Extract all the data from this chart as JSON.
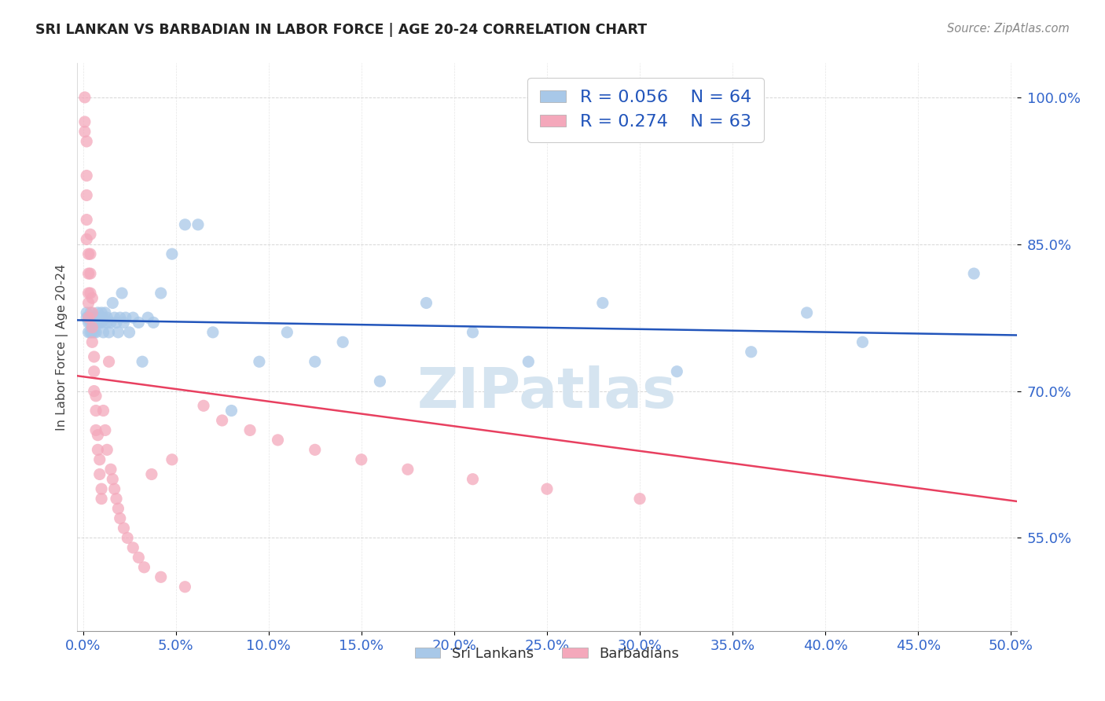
{
  "title": "SRI LANKAN VS BARBADIAN IN LABOR FORCE | AGE 20-24 CORRELATION CHART",
  "source": "Source: ZipAtlas.com",
  "ylabel": "In Labor Force | Age 20-24",
  "xlim": [
    -0.003,
    0.503
  ],
  "ylim": [
    0.455,
    1.035
  ],
  "ytick_vals": [
    0.55,
    0.7,
    0.85,
    1.0
  ],
  "ytick_labels": [
    "55.0%",
    "70.0%",
    "85.0%",
    "100.0%"
  ],
  "xtick_vals": [
    0.0,
    0.05,
    0.1,
    0.15,
    0.2,
    0.25,
    0.3,
    0.35,
    0.4,
    0.45,
    0.5
  ],
  "sri_lankan_color": "#a8c8e8",
  "barbadian_color": "#f4a8bb",
  "sri_lankan_line_color": "#2255bb",
  "barbadian_line_color": "#e84060",
  "tick_color": "#3366cc",
  "grid_color": "#cccccc",
  "title_color": "#222222",
  "source_color": "#888888",
  "watermark_color": "#d5e4f0",
  "legend_text_color": "#2255bb",
  "sri_r": 0.056,
  "sri_n": 64,
  "bar_r": 0.274,
  "bar_n": 63,
  "sri_lankans_x": [
    0.002,
    0.002,
    0.003,
    0.003,
    0.003,
    0.004,
    0.004,
    0.004,
    0.005,
    0.005,
    0.005,
    0.005,
    0.006,
    0.006,
    0.007,
    0.007,
    0.007,
    0.008,
    0.008,
    0.009,
    0.009,
    0.01,
    0.01,
    0.011,
    0.011,
    0.012,
    0.013,
    0.013,
    0.014,
    0.015,
    0.016,
    0.017,
    0.018,
    0.019,
    0.02,
    0.021,
    0.022,
    0.023,
    0.025,
    0.027,
    0.03,
    0.032,
    0.035,
    0.038,
    0.042,
    0.048,
    0.055,
    0.062,
    0.07,
    0.08,
    0.095,
    0.11,
    0.125,
    0.14,
    0.16,
    0.185,
    0.21,
    0.24,
    0.28,
    0.32,
    0.36,
    0.39,
    0.42,
    0.48
  ],
  "sri_lankans_y": [
    0.775,
    0.78,
    0.77,
    0.76,
    0.775,
    0.78,
    0.77,
    0.76,
    0.775,
    0.77,
    0.76,
    0.775,
    0.77,
    0.76,
    0.775,
    0.77,
    0.76,
    0.78,
    0.77,
    0.775,
    0.77,
    0.78,
    0.77,
    0.76,
    0.775,
    0.78,
    0.77,
    0.775,
    0.76,
    0.77,
    0.79,
    0.775,
    0.77,
    0.76,
    0.775,
    0.8,
    0.77,
    0.775,
    0.76,
    0.775,
    0.77,
    0.73,
    0.775,
    0.77,
    0.8,
    0.84,
    0.87,
    0.87,
    0.76,
    0.68,
    0.73,
    0.76,
    0.73,
    0.75,
    0.71,
    0.79,
    0.76,
    0.73,
    0.79,
    0.72,
    0.74,
    0.78,
    0.75,
    0.82
  ],
  "barbadians_x": [
    0.001,
    0.001,
    0.001,
    0.002,
    0.002,
    0.002,
    0.002,
    0.002,
    0.003,
    0.003,
    0.003,
    0.003,
    0.003,
    0.004,
    0.004,
    0.004,
    0.004,
    0.005,
    0.005,
    0.005,
    0.005,
    0.006,
    0.006,
    0.006,
    0.007,
    0.007,
    0.007,
    0.008,
    0.008,
    0.009,
    0.009,
    0.01,
    0.01,
    0.011,
    0.012,
    0.013,
    0.014,
    0.015,
    0.016,
    0.017,
    0.018,
    0.019,
    0.02,
    0.022,
    0.024,
    0.027,
    0.03,
    0.033,
    0.037,
    0.042,
    0.048,
    0.055,
    0.065,
    0.075,
    0.09,
    0.105,
    0.125,
    0.15,
    0.175,
    0.21,
    0.25,
    0.3,
    0.35
  ],
  "barbadians_y": [
    1.0,
    0.975,
    0.965,
    0.955,
    0.92,
    0.9,
    0.875,
    0.855,
    0.84,
    0.82,
    0.8,
    0.79,
    0.775,
    0.86,
    0.84,
    0.82,
    0.8,
    0.795,
    0.78,
    0.765,
    0.75,
    0.735,
    0.72,
    0.7,
    0.695,
    0.68,
    0.66,
    0.655,
    0.64,
    0.63,
    0.615,
    0.6,
    0.59,
    0.68,
    0.66,
    0.64,
    0.73,
    0.62,
    0.61,
    0.6,
    0.59,
    0.58,
    0.57,
    0.56,
    0.55,
    0.54,
    0.53,
    0.52,
    0.615,
    0.51,
    0.63,
    0.5,
    0.685,
    0.67,
    0.66,
    0.65,
    0.64,
    0.63,
    0.62,
    0.61,
    0.6,
    0.59,
    1.0
  ]
}
